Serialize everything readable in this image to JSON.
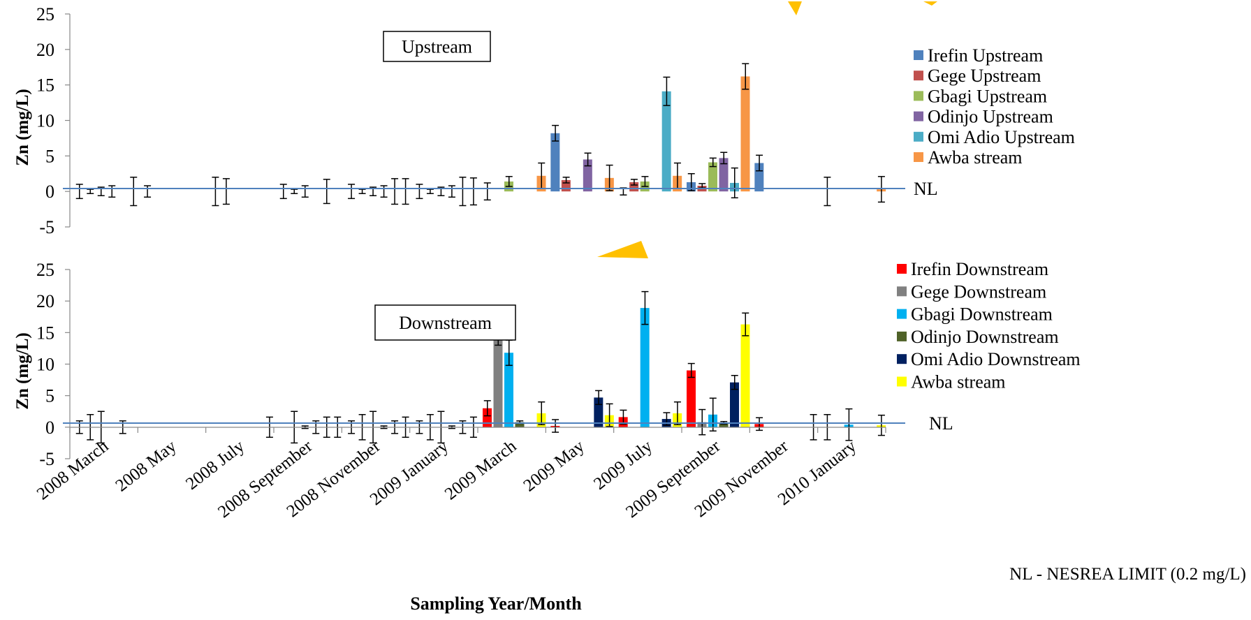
{
  "footnote": "NL - NESREA LIMIT (0.2 mg/L)",
  "xlabel": "Sampling Year/Month",
  "limit_label": "NL",
  "categories": [
    "2008 March",
    "2008 May",
    "2008 July",
    "2008 September",
    "2008 November",
    "2009 January",
    "2009 March",
    "2009 May",
    "2009 July",
    "2009 September",
    "2009 November",
    "2010 January"
  ],
  "colors": {
    "limit_line": "#4F81BD",
    "watermark": "#FFC000"
  },
  "chart_data": [
    {
      "type": "bar",
      "panel_label": "Upstream",
      "ylabel": "Zn (mg/L)",
      "ylim": [
        -5,
        25
      ],
      "yticks": [
        "-5",
        "0",
        "5",
        "10",
        "15",
        "20",
        "25"
      ],
      "limit": 0.2,
      "limit_label": "NL",
      "legend_position": "right",
      "series": [
        {
          "name": "Irefin Upstream",
          "color": "#4F81BD",
          "values": [
            0.0,
            0.0,
            0.0,
            0.0,
            0.0,
            0.0,
            0.0,
            8.2,
            0.0,
            1.3,
            4.0,
            0.0
          ],
          "errors": [
            1.0,
            0.8,
            2.0,
            1.0,
            1.0,
            1.0,
            1.2,
            1.1,
            0.5,
            1.2,
            1.1,
            2.0
          ]
        },
        {
          "name": "Gege Upstream",
          "color": "#C0504D",
          "values": [
            0.0,
            0.0,
            0.0,
            0.0,
            0.0,
            0.0,
            0.0,
            1.6,
            1.3,
            0.8,
            0.0,
            0.0
          ],
          "errors": [
            0.3,
            0.0,
            1.8,
            0.3,
            0.3,
            0.3,
            0.0,
            0.4,
            0.4,
            0.3,
            0.0,
            0.0
          ]
        },
        {
          "name": "Gbagi Upstream",
          "color": "#9BBB59",
          "values": [
            0.0,
            0.0,
            0.0,
            0.0,
            0.0,
            0.0,
            1.4,
            0.0,
            1.4,
            4.1,
            0.0,
            0.0
          ],
          "errors": [
            0.6,
            0.0,
            0.0,
            0.8,
            0.6,
            0.6,
            0.7,
            0.0,
            0.7,
            0.6,
            0.0,
            0.0
          ]
        },
        {
          "name": "Odinjo Upstream",
          "color": "#8064A2",
          "values": [
            0.0,
            0.0,
            0.0,
            0.0,
            0.0,
            0.0,
            0.0,
            4.5,
            0.0,
            4.7,
            0.0,
            0.0
          ],
          "errors": [
            0.8,
            0.0,
            0.0,
            0.0,
            0.8,
            0.8,
            0.0,
            0.9,
            0.0,
            0.8,
            0.0,
            0.0
          ]
        },
        {
          "name": "Omi Adio Upstream",
          "color": "#4BACC6",
          "values": [
            0.0,
            0.0,
            0.0,
            0.0,
            0.0,
            0.0,
            0.0,
            0.0,
            14.1,
            1.2,
            0.0,
            0.0
          ],
          "errors": [
            0.0,
            0.0,
            0.0,
            1.7,
            1.8,
            2.0,
            0.0,
            0.0,
            2.0,
            2.1,
            0.0,
            0.0
          ]
        },
        {
          "name": "Awba stream",
          "color": "#F79646",
          "values": [
            0.0,
            0.0,
            0.0,
            0.0,
            0.0,
            0.0,
            2.2,
            1.9,
            2.2,
            16.2,
            0.0,
            0.3
          ],
          "errors": [
            2.0,
            0.0,
            0.0,
            0.0,
            1.8,
            1.9,
            1.8,
            1.8,
            1.8,
            1.8,
            0.0,
            1.8
          ]
        }
      ]
    },
    {
      "type": "bar",
      "panel_label": "Downstream",
      "ylabel": "Zn (mg/L)",
      "ylim": [
        -5,
        25
      ],
      "yticks": [
        "-5",
        "0",
        "5",
        "10",
        "15",
        "20",
        "25"
      ],
      "limit": 0.2,
      "limit_label": "NL",
      "legend_position": "right",
      "series": [
        {
          "name": "Irefin Downstream",
          "color": "#FF0000",
          "values": [
            0.0,
            0.0,
            0.0,
            0.0,
            0.0,
            0.0,
            3.0,
            0.2,
            1.6,
            9.0,
            0.5,
            0.0
          ],
          "errors": [
            1.0,
            0.0,
            0.0,
            0.0,
            1.0,
            1.0,
            1.2,
            1.0,
            1.1,
            1.1,
            1.0,
            2.0
          ]
        },
        {
          "name": "Gege Downstream",
          "color": "#808080",
          "values": [
            0.0,
            0.0,
            0.0,
            0.0,
            0.0,
            0.0,
            14.0,
            0.0,
            0.0,
            0.8,
            0.0,
            0.0
          ],
          "errors": [
            2.0,
            0.0,
            0.0,
            2.5,
            2.0,
            2.0,
            1.0,
            0.0,
            0.0,
            2.0,
            0.0,
            0.0
          ]
        },
        {
          "name": "Gbagi Downstream",
          "color": "#00B0F0",
          "values": [
            0.0,
            0.0,
            0.0,
            0.0,
            0.0,
            0.0,
            11.8,
            0.0,
            18.9,
            2.0,
            0.0,
            0.4
          ],
          "errors": [
            2.5,
            0.0,
            0.0,
            0.2,
            2.5,
            2.5,
            2.0,
            0.0,
            2.6,
            2.6,
            0.0,
            2.5
          ]
        },
        {
          "name": "Odinjo Downstream",
          "color": "#4F6228",
          "values": [
            0.0,
            0.0,
            0.0,
            0.0,
            0.0,
            0.0,
            0.8,
            0.0,
            0.0,
            0.7,
            0.0,
            0.0
          ],
          "errors": [
            0.0,
            0.0,
            0.0,
            1.0,
            0.2,
            0.2,
            0.2,
            0.0,
            0.0,
            0.2,
            0.0,
            0.0
          ]
        },
        {
          "name": "Omi Adio Downstream",
          "color": "#002060",
          "values": [
            0.0,
            0.0,
            0.0,
            0.0,
            0.0,
            0.0,
            0.0,
            4.7,
            1.3,
            7.1,
            0.0,
            0.0
          ],
          "errors": [
            1.0,
            0.0,
            0.0,
            1.6,
            1.0,
            1.0,
            0.0,
            1.1,
            1.0,
            1.1,
            0.0,
            0.0
          ]
        },
        {
          "name": "Awba stream",
          "color": "#FFFF00",
          "values": [
            0.0,
            0.0,
            0.0,
            0.0,
            0.0,
            0.0,
            2.2,
            1.9,
            2.2,
            16.3,
            0.0,
            0.3
          ],
          "errors": [
            0.0,
            0.0,
            1.6,
            1.6,
            1.6,
            1.6,
            1.8,
            1.8,
            1.8,
            1.8,
            2.0,
            1.6
          ]
        }
      ]
    }
  ]
}
